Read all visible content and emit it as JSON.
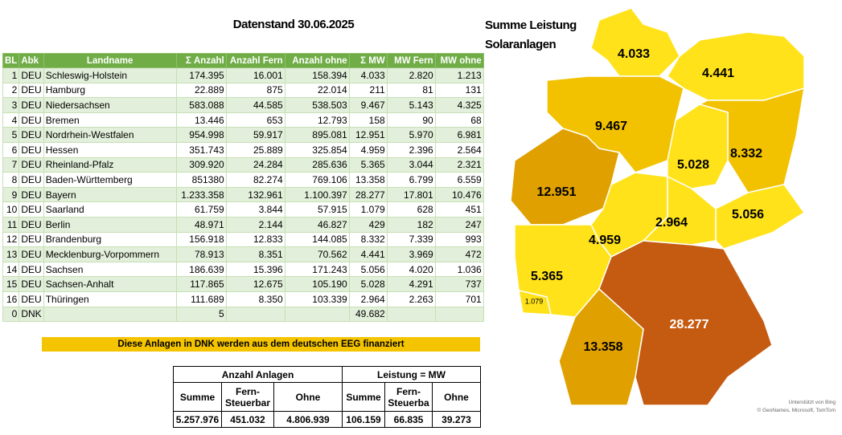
{
  "header": {
    "title": "Datenstand 30.06.2025"
  },
  "table": {
    "columns": [
      "BL",
      "Abk",
      "Landname",
      "Σ Anzahl",
      "Anzahl Fern",
      "Anzahl ohne",
      "Σ MW",
      "MW Fern",
      "MW ohne"
    ],
    "rows": [
      [
        "1",
        "DEU",
        "Schleswig-Holstein",
        "174.395",
        "16.001",
        "158.394",
        "4.033",
        "2.820",
        "1.213"
      ],
      [
        "2",
        "DEU",
        "Hamburg",
        "22.889",
        "875",
        "22.014",
        "211",
        "81",
        "131"
      ],
      [
        "3",
        "DEU",
        "Niedersachsen",
        "583.088",
        "44.585",
        "538.503",
        "9.467",
        "5.143",
        "4.325"
      ],
      [
        "4",
        "DEU",
        "Bremen",
        "13.446",
        "653",
        "12.793",
        "158",
        "90",
        "68"
      ],
      [
        "5",
        "DEU",
        "Nordrhein-Westfalen",
        "954.998",
        "59.917",
        "895.081",
        "12.951",
        "5.970",
        "6.981"
      ],
      [
        "6",
        "DEU",
        "Hessen",
        "351.743",
        "25.889",
        "325.854",
        "4.959",
        "2.396",
        "2.564"
      ],
      [
        "7",
        "DEU",
        "Rheinland-Pfalz",
        "309.920",
        "24.284",
        "285.636",
        "5.365",
        "3.044",
        "2.321"
      ],
      [
        "8",
        "DEU",
        "Baden-Württemberg",
        "851380",
        "82.274",
        "769.106",
        "13.358",
        "6.799",
        "6.559"
      ],
      [
        "9",
        "DEU",
        "Bayern",
        "1.233.358",
        "132.961",
        "1.100.397",
        "28.277",
        "17.801",
        "10.476"
      ],
      [
        "10",
        "DEU",
        "Saarland",
        "61.759",
        "3.844",
        "57.915",
        "1.079",
        "628",
        "451"
      ],
      [
        "11",
        "DEU",
        "Berlin",
        "48.971",
        "2.144",
        "46.827",
        "429",
        "182",
        "247"
      ],
      [
        "12",
        "DEU",
        "Brandenburg",
        "156.918",
        "12.833",
        "144.085",
        "8.332",
        "7.339",
        "993"
      ],
      [
        "13",
        "DEU",
        "Mecklenburg-Vorpommern",
        "78.913",
        "8.351",
        "70.562",
        "4.441",
        "3.969",
        "472"
      ],
      [
        "14",
        "DEU",
        "Sachsen",
        "186.639",
        "15.396",
        "171.243",
        "5.056",
        "4.020",
        "1.036"
      ],
      [
        "15",
        "DEU",
        "Sachsen-Anhalt",
        "117.865",
        "12.675",
        "105.190",
        "5.028",
        "4.291",
        "737"
      ],
      [
        "16",
        "DEU",
        "Thüringen",
        "111.689",
        "8.350",
        "103.339",
        "2.964",
        "2.263",
        "701"
      ],
      [
        "0",
        "DNK",
        null,
        "5",
        null,
        null,
        "49.682",
        null,
        null
      ]
    ]
  },
  "banner": "Diese Anlagen in DNK werden aus dem deutschen EEG finanziert",
  "summary": {
    "groups": [
      "Anzahl Anlagen",
      "Leistung = MW"
    ],
    "columns": [
      [
        "Summe"
      ],
      [
        "Fern-",
        "Steuerbar"
      ],
      [
        "Ohne"
      ],
      [
        "Summe"
      ],
      [
        "Fern-",
        "Steuerba"
      ],
      [
        "Ohne"
      ]
    ],
    "values": [
      "5.257.976",
      "451.032",
      "4.806.939",
      "106.159",
      "66.835",
      "39.273"
    ]
  },
  "map": {
    "title": [
      "Summe Leistung",
      "Solaranlagen"
    ],
    "regions": [
      {
        "label": "4.033",
        "color": "#ffe21a"
      },
      {
        "label": "4.441",
        "color": "#ffe21a"
      },
      {
        "label": "9.467",
        "color": "#f2c200"
      },
      {
        "label": "8.332",
        "color": "#f2c200"
      },
      {
        "label": "5.028",
        "color": "#ffe21a"
      },
      {
        "label": "12.951",
        "color": "#e0a100"
      },
      {
        "label": "5.056",
        "color": "#ffe21a"
      },
      {
        "label": "2.964",
        "color": "#ffe21a"
      },
      {
        "label": "4.959",
        "color": "#ffe21a"
      },
      {
        "label": "5.365",
        "color": "#ffe21a"
      },
      {
        "label": "1.079",
        "color": "#ffe21a"
      },
      {
        "label": "28.277",
        "color": "#c55a11"
      },
      {
        "label": "13.358",
        "color": "#e0a100"
      }
    ],
    "attribution": [
      "Unterstützt von Bing",
      "© GeoNames, Microsoft, TomTom"
    ]
  }
}
